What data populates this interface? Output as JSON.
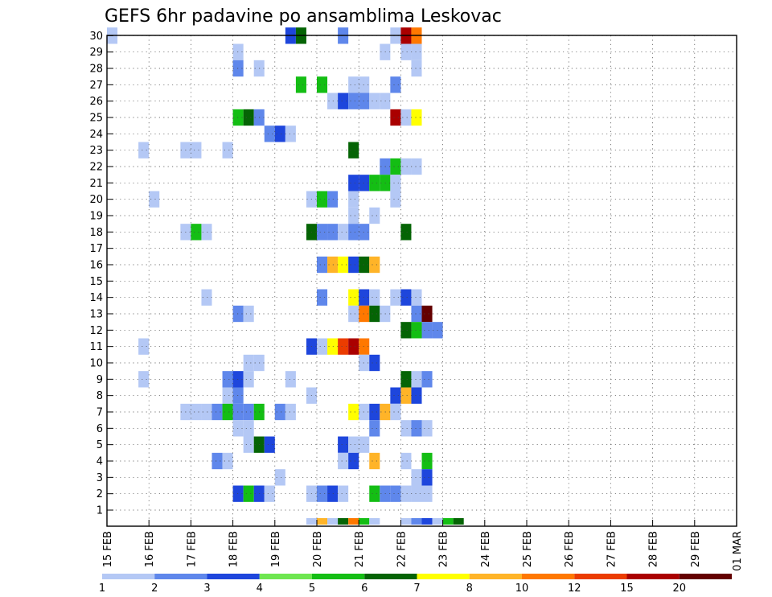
{
  "chart_data": {
    "type": "heatmap",
    "title": "GEFS 6hr padavine po ansamblima Leskovac",
    "xlabel": "",
    "ylabel": "",
    "x_ticks": [
      "15 FEB",
      "16 FEB",
      "17 FEB",
      "18 FEB",
      "19 FEB",
      "20 FEB",
      "21 FEB",
      "22 FEB",
      "23 FEB",
      "24 FEB",
      "25 FEB",
      "26 FEB",
      "27 FEB",
      "28 FEB",
      "29 FEB",
      "01 MAR"
    ],
    "y_ticks": [
      1,
      2,
      3,
      4,
      5,
      6,
      7,
      8,
      9,
      10,
      11,
      12,
      13,
      14,
      15,
      16,
      17,
      18,
      19,
      20,
      21,
      22,
      23,
      24,
      25,
      26,
      27,
      28,
      29,
      30
    ],
    "x_unit": "6-hour step (0 = 15 FEB 00Z)",
    "grid": "dotted",
    "legend": {
      "position": "bottom",
      "labels": [
        "1",
        "2",
        "3",
        "4",
        "5",
        "6",
        "7",
        "8",
        "10",
        "12",
        "15",
        "20"
      ],
      "colors": [
        "#b4c8f5",
        "#5f87eb",
        "#1e46dc",
        "#6ee650",
        "#14be14",
        "#056405",
        "#ffff00",
        "#ffb428",
        "#ff7800",
        "#eb3c00",
        "#aa0000",
        "#640000"
      ]
    },
    "cells": [
      [
        0,
        30,
        1
      ],
      [
        17,
        30,
        3
      ],
      [
        18,
        30,
        6
      ],
      [
        22,
        30,
        2
      ],
      [
        27,
        30,
        1
      ],
      [
        28,
        30,
        11
      ],
      [
        29,
        30,
        9
      ],
      [
        12,
        29,
        1
      ],
      [
        26,
        29,
        1
      ],
      [
        28,
        29,
        1
      ],
      [
        29,
        29,
        1
      ],
      [
        12,
        28,
        2
      ],
      [
        14,
        28,
        1
      ],
      [
        29,
        28,
        1
      ],
      [
        18,
        27,
        5
      ],
      [
        20,
        27,
        5
      ],
      [
        23,
        27,
        1
      ],
      [
        24,
        27,
        1
      ],
      [
        27,
        27,
        2
      ],
      [
        21,
        26,
        1
      ],
      [
        22,
        26,
        3
      ],
      [
        23,
        26,
        2
      ],
      [
        24,
        26,
        2
      ],
      [
        25,
        26,
        1
      ],
      [
        26,
        26,
        1
      ],
      [
        12,
        25,
        5
      ],
      [
        13,
        25,
        6
      ],
      [
        14,
        25,
        2
      ],
      [
        27,
        25,
        11
      ],
      [
        28,
        25,
        1
      ],
      [
        29,
        25,
        7
      ],
      [
        15,
        24,
        2
      ],
      [
        16,
        24,
        3
      ],
      [
        17,
        24,
        1
      ],
      [
        3,
        23,
        1
      ],
      [
        7,
        23,
        1
      ],
      [
        8,
        23,
        1
      ],
      [
        11,
        23,
        1
      ],
      [
        23,
        23,
        6
      ],
      [
        26,
        22,
        2
      ],
      [
        27,
        22,
        5
      ],
      [
        28,
        22,
        1
      ],
      [
        29,
        22,
        1
      ],
      [
        23,
        21,
        3
      ],
      [
        24,
        21,
        3
      ],
      [
        25,
        21,
        5
      ],
      [
        26,
        21,
        5
      ],
      [
        27,
        21,
        1
      ],
      [
        4,
        20,
        1
      ],
      [
        19,
        20,
        1
      ],
      [
        20,
        20,
        5
      ],
      [
        21,
        20,
        2
      ],
      [
        23,
        20,
        1
      ],
      [
        27,
        20,
        1
      ],
      [
        23,
        19,
        1
      ],
      [
        25,
        19,
        1
      ],
      [
        7,
        18,
        1
      ],
      [
        8,
        18,
        5
      ],
      [
        9,
        18,
        1
      ],
      [
        19,
        18,
        6
      ],
      [
        20,
        18,
        2
      ],
      [
        21,
        18,
        2
      ],
      [
        22,
        18,
        1
      ],
      [
        23,
        18,
        2
      ],
      [
        24,
        18,
        2
      ],
      [
        28,
        18,
        6
      ],
      [
        20,
        16,
        2
      ],
      [
        21,
        16,
        8
      ],
      [
        22,
        16,
        7
      ],
      [
        23,
        16,
        3
      ],
      [
        24,
        16,
        6
      ],
      [
        25,
        16,
        8
      ],
      [
        9,
        14,
        1
      ],
      [
        20,
        14,
        2
      ],
      [
        23,
        14,
        7
      ],
      [
        24,
        14,
        3
      ],
      [
        25,
        14,
        1
      ],
      [
        27,
        14,
        1
      ],
      [
        28,
        14,
        3
      ],
      [
        29,
        14,
        1
      ],
      [
        12,
        13,
        2
      ],
      [
        13,
        13,
        1
      ],
      [
        23,
        13,
        1
      ],
      [
        24,
        13,
        9
      ],
      [
        25,
        13,
        6
      ],
      [
        26,
        13,
        1
      ],
      [
        29,
        13,
        2
      ],
      [
        30,
        13,
        12
      ],
      [
        28,
        12,
        6
      ],
      [
        29,
        12,
        5
      ],
      [
        30,
        12,
        2
      ],
      [
        31,
        12,
        2
      ],
      [
        3,
        11,
        1
      ],
      [
        19,
        11,
        3
      ],
      [
        20,
        11,
        1
      ],
      [
        21,
        11,
        7
      ],
      [
        22,
        11,
        10
      ],
      [
        23,
        11,
        11
      ],
      [
        24,
        11,
        9
      ],
      [
        13,
        10,
        1
      ],
      [
        14,
        10,
        1
      ],
      [
        24,
        10,
        1
      ],
      [
        25,
        10,
        3
      ],
      [
        3,
        9,
        1
      ],
      [
        11,
        9,
        2
      ],
      [
        12,
        9,
        3
      ],
      [
        13,
        9,
        1
      ],
      [
        17,
        9,
        1
      ],
      [
        28,
        9,
        6
      ],
      [
        29,
        9,
        1
      ],
      [
        30,
        9,
        2
      ],
      [
        11,
        8,
        1
      ],
      [
        12,
        8,
        2
      ],
      [
        19,
        8,
        1
      ],
      [
        27,
        8,
        3
      ],
      [
        28,
        8,
        8
      ],
      [
        29,
        8,
        3
      ],
      [
        7,
        7,
        1
      ],
      [
        8,
        7,
        1
      ],
      [
        9,
        7,
        1
      ],
      [
        10,
        7,
        2
      ],
      [
        11,
        7,
        5
      ],
      [
        12,
        7,
        2
      ],
      [
        13,
        7,
        2
      ],
      [
        14,
        7,
        5
      ],
      [
        16,
        7,
        2
      ],
      [
        17,
        7,
        1
      ],
      [
        23,
        7,
        7
      ],
      [
        24,
        7,
        1
      ],
      [
        25,
        7,
        3
      ],
      [
        26,
        7,
        8
      ],
      [
        27,
        7,
        1
      ],
      [
        12,
        6,
        1
      ],
      [
        13,
        6,
        1
      ],
      [
        25,
        6,
        2
      ],
      [
        28,
        6,
        1
      ],
      [
        29,
        6,
        2
      ],
      [
        30,
        6,
        1
      ],
      [
        13,
        5,
        1
      ],
      [
        14,
        5,
        6
      ],
      [
        15,
        5,
        3
      ],
      [
        22,
        5,
        3
      ],
      [
        23,
        5,
        1
      ],
      [
        24,
        5,
        1
      ],
      [
        10,
        4,
        2
      ],
      [
        11,
        4,
        1
      ],
      [
        22,
        4,
        1
      ],
      [
        23,
        4,
        3
      ],
      [
        25,
        4,
        8
      ],
      [
        28,
        4,
        1
      ],
      [
        30,
        4,
        5
      ],
      [
        16,
        3,
        1
      ],
      [
        29,
        3,
        1
      ],
      [
        30,
        3,
        3
      ],
      [
        12,
        2,
        3
      ],
      [
        13,
        2,
        5
      ],
      [
        14,
        2,
        3
      ],
      [
        15,
        2,
        1
      ],
      [
        19,
        2,
        1
      ],
      [
        20,
        2,
        2
      ],
      [
        21,
        2,
        3
      ],
      [
        22,
        2,
        1
      ],
      [
        25,
        2,
        5
      ],
      [
        26,
        2,
        2
      ],
      [
        27,
        2,
        2
      ],
      [
        28,
        2,
        1
      ],
      [
        29,
        2,
        1
      ],
      [
        30,
        2,
        1
      ],
      [
        19,
        0,
        1
      ],
      [
        20,
        0,
        8
      ],
      [
        21,
        0,
        1
      ],
      [
        22,
        0,
        6
      ],
      [
        23,
        0,
        9
      ],
      [
        24,
        0,
        5
      ],
      [
        25,
        0,
        1
      ],
      [
        28,
        0,
        1
      ],
      [
        29,
        0,
        2
      ],
      [
        30,
        0,
        3
      ],
      [
        31,
        0,
        1
      ],
      [
        32,
        0,
        5
      ],
      [
        33,
        0,
        6
      ]
    ]
  }
}
